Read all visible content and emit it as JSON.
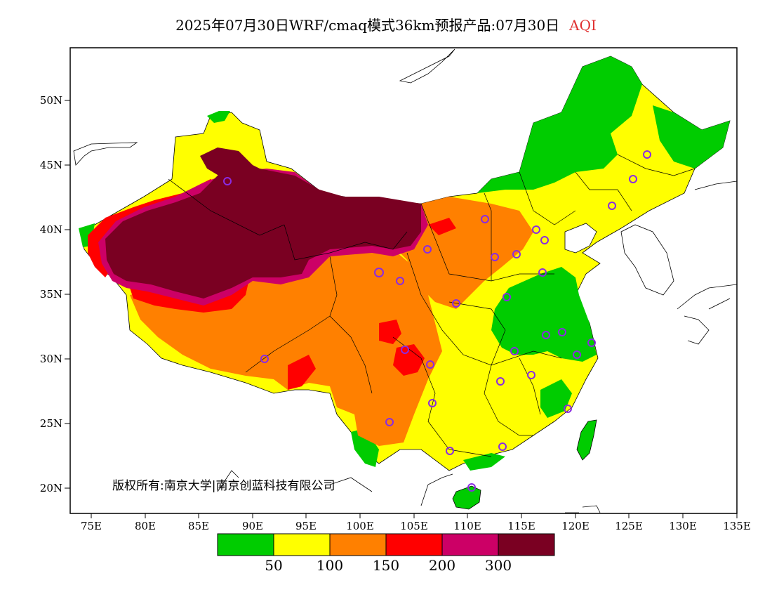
{
  "header": {
    "title": "2025年07月30日WRF/cmaq模式36km预报产品:07月30日",
    "product": "AQI",
    "product_color": "#e03030"
  },
  "axes": {
    "lat_labels": [
      "50N",
      "45N",
      "40N",
      "35N",
      "30N",
      "25N",
      "20N"
    ],
    "lon_labels": [
      "75E",
      "80E",
      "85E",
      "90E",
      "95E",
      "100E",
      "105E",
      "110E",
      "115E",
      "120E",
      "125E",
      "130E",
      "135E"
    ]
  },
  "legend": {
    "colors": [
      "#00cc00",
      "#ffff00",
      "#ff8000",
      "#ff0000",
      "#cc0066",
      "#7a0022"
    ],
    "labels": [
      "50",
      "100",
      "150",
      "200",
      "300"
    ]
  },
  "copyright": "版权所有:南京大学|南京创蓝科技有限公司",
  "colors": {
    "good": "#00cc00",
    "moderate": "#ffff00",
    "usg": "#ff8000",
    "unhealthy": "#ff0000",
    "very_unhealthy": "#cc0066",
    "hazardous": "#7a0022",
    "station_marker": "#8a2be2"
  }
}
